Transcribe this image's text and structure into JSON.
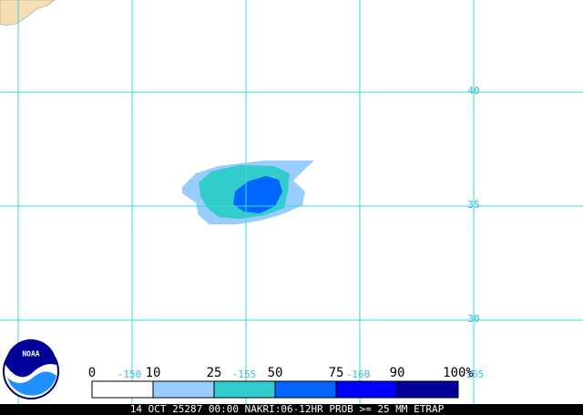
{
  "map": {
    "latitude_labels": [
      "40",
      "35",
      "30"
    ],
    "longitude_labels": [
      "-150",
      "-155",
      "-160",
      "-165"
    ],
    "legend": {
      "labels": [
        "0",
        "10",
        "25",
        "50",
        "75",
        "90",
        "100%"
      ],
      "colors": [
        "#ffffff",
        "#99ccff",
        "#33cccc",
        "#0066ff",
        "#0000ff",
        "#000099"
      ]
    },
    "logo": "NOAA",
    "footer": "14 OCT 25287 00:00 NAKRI:06-12HR PROB >= 25 MM ETRAP"
  }
}
